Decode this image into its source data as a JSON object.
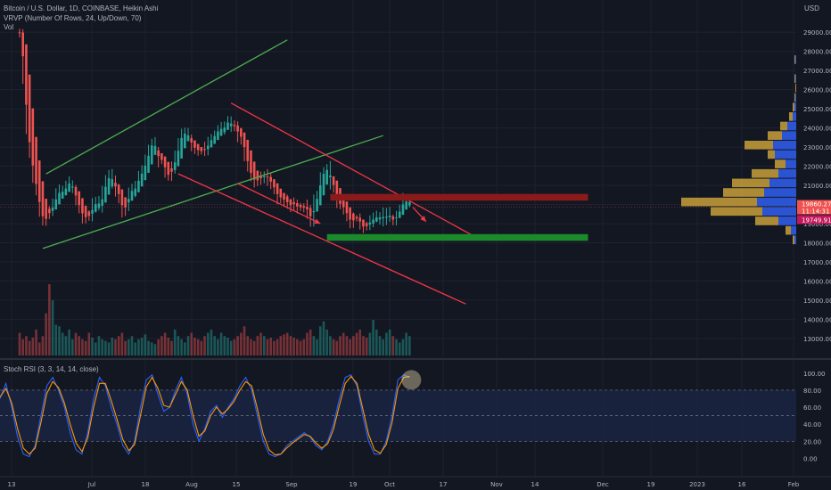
{
  "header": {
    "symbol_line": "Bitcoin / U.S. Dollar, 1D, COINBASE, Heikin Ashi",
    "vrvp_line": "VRVP (Number Of Rows, 24, Up/Down, 70)",
    "vol_label": "Vol",
    "currency": "USD"
  },
  "price_scale": {
    "ticks": [
      "29000.00",
      "28000.00",
      "27000.00",
      "26000.00",
      "25000.00",
      "24000.00",
      "23000.00",
      "22000.00",
      "21000.00",
      "20000.00",
      "19000.00",
      "18000.00",
      "17000.00",
      "16000.00",
      "15000.00",
      "14000.00",
      "13000.00"
    ],
    "last_price": "19860.27",
    "countdown": "11:14:31",
    "low_price": "19749.91"
  },
  "time_axis": [
    "13",
    "Jul",
    "18",
    "Aug",
    "15",
    "Sep",
    "19",
    "Oct",
    "17",
    "Nov",
    "14",
    "Dec",
    "19",
    "2023",
    "16",
    "Feb"
  ],
  "stoch": {
    "label": "Stoch RSI (3, 3, 14, 14, close)",
    "ticks": [
      "100.00",
      "80.00",
      "60.00",
      "40.00",
      "20.00",
      "0.00"
    ]
  },
  "colors": {
    "background": "#131722",
    "up": "#26a69a",
    "down": "#ef5350",
    "channel_green": "#4caf50",
    "channel_red": "#f23645",
    "resistance_zone": "#8b1a1a",
    "support_zone": "#1b8a2b",
    "k_line": "#2962ff",
    "d_line": "#ff9800",
    "vrvp_up": "#2e5be6",
    "vrvp_down": "#c9a03a"
  },
  "chart_data": [
    {
      "type": "line",
      "title": "Bitcoin / U.S. Dollar, 1D, COINBASE, Heikin Ashi",
      "xlabel": "",
      "ylabel": "USD",
      "ylim": [
        12200,
        30500
      ],
      "y_scale": "linear",
      "grid": true,
      "x_range": [
        "2022-06-11",
        "2023-02-01"
      ],
      "price_path": [
        [
          "2022-06-11",
          29000
        ],
        [
          "2022-06-13",
          24000
        ],
        [
          "2022-06-15",
          21500
        ],
        [
          "2022-06-18",
          19000
        ],
        [
          "2022-06-22",
          20400
        ],
        [
          "2022-06-26",
          21200
        ],
        [
          "2022-06-30",
          19300
        ],
        [
          "2022-07-05",
          20100
        ],
        [
          "2022-07-08",
          21600
        ],
        [
          "2022-07-12",
          19800
        ],
        [
          "2022-07-17",
          21400
        ],
        [
          "2022-07-21",
          23300
        ],
        [
          "2022-07-26",
          21300
        ],
        [
          "2022-07-30",
          23800
        ],
        [
          "2022-08-04",
          22800
        ],
        [
          "2022-08-09",
          23600
        ],
        [
          "2022-08-13",
          24400
        ],
        [
          "2022-08-17",
          23400
        ],
        [
          "2022-08-20",
          21300
        ],
        [
          "2022-08-24",
          21400
        ],
        [
          "2022-08-28",
          20300
        ],
        [
          "2022-09-01",
          20100
        ],
        [
          "2022-09-05",
          19800
        ],
        [
          "2022-09-07",
          19200
        ],
        [
          "2022-09-10",
          21500
        ],
        [
          "2022-09-12",
          21900
        ],
        [
          "2022-09-15",
          20100
        ],
        [
          "2022-09-19",
          19200
        ],
        [
          "2022-09-23",
          19000
        ],
        [
          "2022-09-28",
          19300
        ],
        [
          "2022-10-02",
          19400
        ],
        [
          "2022-10-05",
          20200
        ],
        [
          "2022-10-07",
          19860
        ]
      ],
      "price_style": "Heikin Ashi candles",
      "annotations": {
        "green_channel": {
          "upper": [
            [
              "2022-06-19",
              21600
            ],
            [
              "2022-08-31",
              28600
            ]
          ],
          "lower": [
            [
              "2022-06-18",
              17700
            ],
            [
              "2022-09-29",
              23600
            ]
          ]
        },
        "red_channel": {
          "upper": [
            [
              "2022-08-14",
              25300
            ],
            [
              "2022-10-28",
              18200
            ]
          ],
          "lower": [
            [
              "2022-07-29",
              21600
            ],
            [
              "2022-10-24",
              14800
            ]
          ]
        },
        "resistance_zone": [
          20200,
          20550
        ],
        "support_zone": [
          18100,
          18450
        ],
        "arrows": [
          {
            "from": [
              "2022-08-16",
              21100
            ],
            "to": [
              "2022-09-10",
              19000
            ]
          },
          {
            "from": [
              "2022-10-08",
              19850
            ],
            "to": [
              "2022-10-12",
              19100
            ]
          }
        ]
      },
      "volume_profile": {
        "price_min": 17900,
        "price_max": 29800,
        "rows": 24,
        "up": [
          2,
          6,
          20,
          38,
          44,
          36,
          30,
          20,
          12,
          24,
          26,
          16,
          10,
          4,
          2,
          1,
          0,
          1,
          0,
          1,
          0,
          0,
          0,
          0
        ],
        "down": [
          2,
          6,
          26,
          58,
          85,
          46,
          42,
          30,
          12,
          8,
          32,
          16,
          8,
          4,
          2,
          1,
          1,
          1,
          0,
          1,
          0,
          0,
          0,
          0
        ]
      }
    },
    {
      "type": "bar",
      "title": "Vol",
      "values_note_less": true,
      "volume": [
        14,
        10,
        12,
        9,
        11,
        16,
        8,
        12,
        26,
        44,
        34,
        19,
        18,
        14,
        12,
        16,
        10,
        14,
        12,
        10,
        9,
        14,
        11,
        8,
        12,
        10,
        9,
        8,
        11,
        10,
        12,
        14,
        9,
        10,
        12,
        8,
        10,
        11,
        13,
        9,
        8,
        7,
        10,
        12,
        14,
        11,
        9,
        16,
        12,
        10,
        8,
        12,
        14,
        11,
        10,
        9,
        12,
        14,
        16,
        12,
        10,
        14,
        12,
        11,
        9,
        10,
        12,
        14,
        18,
        12,
        10,
        9,
        12,
        14,
        12,
        10,
        11,
        9,
        10,
        12,
        13,
        14,
        12,
        11,
        10,
        9,
        10,
        14,
        16,
        12,
        10,
        18,
        21,
        16,
        12,
        10,
        9,
        12,
        14,
        12,
        10,
        12,
        14,
        16,
        12,
        11,
        14,
        22,
        16,
        12,
        10,
        14,
        16,
        12,
        10,
        8,
        10,
        14,
        12,
        11
      ]
    },
    {
      "type": "line",
      "title": "Stoch RSI (3, 3, 14, 14, close)",
      "ylim": [
        -10,
        105
      ],
      "grid": false,
      "bands": [
        20,
        80
      ],
      "series": [
        {
          "name": "",
          "values": [
            70,
            88,
            60,
            25,
            5,
            2,
            15,
            50,
            85,
            95,
            80,
            60,
            30,
            10,
            5,
            30,
            70,
            95,
            85,
            60,
            40,
            15,
            5,
            20,
            60,
            92,
            98,
            75,
            55,
            60,
            80,
            95,
            75,
            40,
            20,
            35,
            55,
            62,
            48,
            60,
            70,
            85,
            95,
            80,
            50,
            20,
            5,
            2,
            5,
            15,
            20,
            25,
            30,
            25,
            15,
            10,
            20,
            40,
            70,
            95,
            98,
            85,
            50,
            20,
            5,
            5,
            20,
            50,
            92,
            98,
            95
          ]
        },
        {
          "name": "",
          "values": [
            72,
            82,
            65,
            35,
            12,
            5,
            12,
            42,
            76,
            90,
            83,
            65,
            40,
            18,
            8,
            24,
            60,
            88,
            88,
            68,
            46,
            22,
            9,
            16,
            50,
            84,
            95,
            82,
            62,
            60,
            75,
            90,
            80,
            50,
            26,
            32,
            50,
            60,
            52,
            58,
            67,
            80,
            90,
            85,
            58,
            28,
            10,
            4,
            5,
            12,
            18,
            23,
            28,
            26,
            18,
            12,
            17,
            34,
            62,
            88,
            96,
            88,
            58,
            28,
            10,
            6,
            16,
            42,
            82,
            95,
            96
          ]
        }
      ]
    }
  ]
}
